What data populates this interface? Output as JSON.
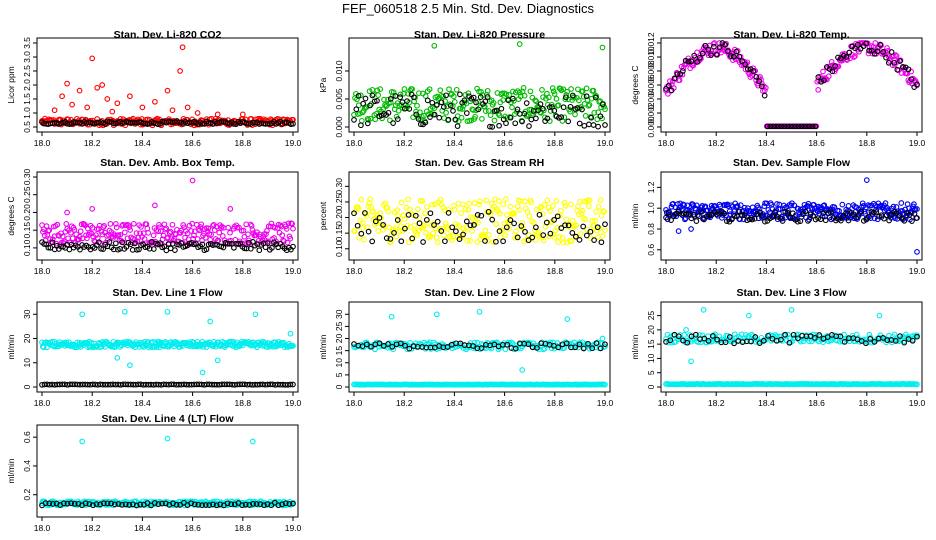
{
  "page_title": "FEF_060518  2.5 Min. Std. Dev. Diagnostics",
  "chart_data": [
    {
      "id": "co2",
      "type": "scatter",
      "title": "Stan. Dev. Li-820 CO2",
      "ylabel": "Licor ppm",
      "xlim": [
        18.0,
        19.0
      ],
      "ylim": [
        0.5,
        3.5
      ],
      "xticks": [
        "18.0",
        "18.2",
        "18.4",
        "18.6",
        "18.8",
        "19.0"
      ],
      "xtick_values": [
        18.0,
        18.2,
        18.4,
        18.6,
        18.8,
        19.0
      ],
      "yticks": [
        "0.5",
        "1.0",
        "1.5",
        "2.0",
        "2.5",
        "3.0",
        "3.5"
      ],
      "ytick_values": [
        0.5,
        1.0,
        1.5,
        2.0,
        2.5,
        3.0,
        3.5
      ],
      "series": [
        {
          "color": "#ff0000",
          "base": 0.68,
          "spread": 0.12,
          "n": 260,
          "outliers": [
            [
              18.05,
              1.1
            ],
            [
              18.08,
              1.6
            ],
            [
              18.1,
              2.05
            ],
            [
              18.12,
              1.3
            ],
            [
              18.15,
              1.8
            ],
            [
              18.18,
              1.2
            ],
            [
              18.2,
              2.95
            ],
            [
              18.22,
              1.9
            ],
            [
              18.24,
              2.0
            ],
            [
              18.26,
              1.5
            ],
            [
              18.28,
              1.05
            ],
            [
              18.3,
              1.35
            ],
            [
              18.35,
              1.6
            ],
            [
              18.4,
              1.2
            ],
            [
              18.45,
              1.4
            ],
            [
              18.5,
              1.8
            ],
            [
              18.52,
              1.1
            ],
            [
              18.55,
              2.5
            ],
            [
              18.56,
              3.35
            ],
            [
              18.58,
              1.2
            ],
            [
              18.62,
              1.0
            ],
            [
              18.7,
              0.95
            ],
            [
              18.8,
              0.95
            ]
          ]
        },
        {
          "color": "#000000",
          "base": 0.65,
          "spread": 0.05,
          "n": 120,
          "outliers": []
        }
      ]
    },
    {
      "id": "pressure",
      "type": "scatter",
      "title": "Stan. Dev. Li-820 Pressure",
      "ylabel": "kPa",
      "xlim": [
        18.0,
        19.0
      ],
      "ylim": [
        0.0,
        0.015
      ],
      "xticks": [
        "18.0",
        "18.2",
        "18.4",
        "18.6",
        "18.8",
        "19.0"
      ],
      "xtick_values": [
        18.0,
        18.2,
        18.4,
        18.6,
        18.8,
        19.0
      ],
      "yticks": [
        "0.000",
        "0.005",
        "0.010"
      ],
      "ytick_values": [
        0.0,
        0.005,
        0.01
      ],
      "series": [
        {
          "color": "#00bb00",
          "base": 0.004,
          "spread": 0.003,
          "n": 260,
          "outliers": [
            [
              18.32,
              0.0145
            ],
            [
              18.66,
              0.0148
            ],
            [
              18.99,
              0.0142
            ]
          ]
        },
        {
          "color": "#000000",
          "base": 0.003,
          "spread": 0.003,
          "n": 110,
          "outliers": []
        }
      ]
    },
    {
      "id": "temp",
      "type": "scatter",
      "title": "Stan. Dev. Li-820 Temp.",
      "ylabel": "degrees C",
      "xlim": [
        18.0,
        19.0
      ],
      "ylim": [
        0.0,
        0.012
      ],
      "xticks": [
        "18.0",
        "18.2",
        "18.4",
        "18.6",
        "18.8",
        "19.0"
      ],
      "xtick_values": [
        18.0,
        18.2,
        18.4,
        18.6,
        18.8,
        19.0
      ],
      "yticks": [
        "0.000",
        "0.002",
        "0.004",
        "0.006",
        "0.008",
        "0.010",
        "0.012"
      ],
      "ytick_values": [
        0.0,
        0.002,
        0.004,
        0.006,
        0.008,
        0.01,
        0.012
      ],
      "series": [
        {
          "color": "#ee00ee",
          "base": 0.008,
          "spread": 0.002,
          "n": 260,
          "outliers": [],
          "shape": "temp"
        },
        {
          "color": "#000000",
          "base": 0.007,
          "spread": 0.002,
          "n": 90,
          "outliers": [],
          "shape": "temp"
        }
      ]
    },
    {
      "id": "boxtemp",
      "type": "scatter",
      "title": "Stan. Dev. Amb. Box Temp.",
      "ylabel": "degrees C",
      "xlim": [
        18.0,
        19.0
      ],
      "ylim": [
        0.08,
        0.3
      ],
      "xticks": [
        "18.0",
        "18.2",
        "18.4",
        "18.6",
        "18.8",
        "19.0"
      ],
      "xtick_values": [
        18.0,
        18.2,
        18.4,
        18.6,
        18.8,
        19.0
      ],
      "yticks": [
        "0.10",
        "0.15",
        "0.20",
        "0.25",
        "0.30"
      ],
      "ytick_values": [
        0.1,
        0.15,
        0.2,
        0.25,
        0.3
      ],
      "series": [
        {
          "color": "#ee00ee",
          "base": 0.14,
          "spread": 0.03,
          "n": 280,
          "outliers": [
            [
              18.6,
              0.29
            ],
            [
              18.45,
              0.22
            ],
            [
              18.2,
              0.21
            ],
            [
              18.75,
              0.21
            ],
            [
              18.1,
              0.2
            ]
          ]
        },
        {
          "color": "#000000",
          "base": 0.105,
          "spread": 0.012,
          "n": 120,
          "outliers": []
        }
      ]
    },
    {
      "id": "rh",
      "type": "scatter",
      "title": "Stan. Dev. Gas Stream RH",
      "ylabel": "percent",
      "xlim": [
        18.0,
        19.0
      ],
      "ylim": [
        0.08,
        0.33
      ],
      "xticks": [
        "18.0",
        "18.2",
        "18.4",
        "18.6",
        "18.8",
        "19.0"
      ],
      "xtick_values": [
        18.0,
        18.2,
        18.4,
        18.6,
        18.8,
        19.0
      ],
      "yticks": [
        "0.10",
        "0.15",
        "0.20",
        "0.25",
        "0.30"
      ],
      "ytick_values": [
        0.1,
        0.15,
        0.2,
        0.25,
        0.3
      ],
      "series": [
        {
          "color": "#ffff00",
          "base": 0.19,
          "spread": 0.07,
          "n": 280,
          "outliers": []
        },
        {
          "color": "#000000",
          "base": 0.17,
          "spread": 0.05,
          "n": 70,
          "outliers": []
        }
      ]
    },
    {
      "id": "sampleflow",
      "type": "scatter",
      "title": "Stan. Dev. Sample Flow",
      "ylabel": "ml/min",
      "xlim": [
        18.0,
        19.0
      ],
      "ylim": [
        0.55,
        1.3
      ],
      "xticks": [
        "18.0",
        "18.2",
        "18.4",
        "18.6",
        "18.8",
        "19.0"
      ],
      "xtick_values": [
        18.0,
        18.2,
        18.4,
        18.6,
        18.8,
        19.0
      ],
      "yticks": [
        "0.6",
        "0.8",
        "1.0",
        "1.2"
      ],
      "ytick_values": [
        0.6,
        0.8,
        1.0,
        1.2
      ],
      "series": [
        {
          "color": "#0000ee",
          "base": 0.97,
          "spread": 0.08,
          "n": 320,
          "outliers": [
            [
              18.8,
              1.27
            ],
            [
              19.0,
              0.58
            ],
            [
              18.05,
              0.78
            ],
            [
              18.1,
              0.8
            ]
          ]
        },
        {
          "color": "#000000",
          "base": 0.92,
          "spread": 0.05,
          "n": 100,
          "outliers": []
        }
      ]
    },
    {
      "id": "line1",
      "type": "scatter",
      "title": "Stan. Dev. Line 1 Flow",
      "ylabel": "ml/min",
      "xlim": [
        18.0,
        19.0
      ],
      "ylim": [
        0,
        33
      ],
      "xticks": [
        "18.0",
        "18.2",
        "18.4",
        "18.6",
        "18.8",
        "19.0"
      ],
      "xtick_values": [
        18.0,
        18.2,
        18.4,
        18.6,
        18.8,
        19.0
      ],
      "yticks": [
        "0",
        "10",
        "20",
        "30"
      ],
      "ytick_values": [
        0,
        10,
        20,
        30
      ],
      "series": [
        {
          "color": "#00eeee",
          "base": 17.5,
          "spread": 1.2,
          "n": 300,
          "outliers": [
            [
              18.16,
              30
            ],
            [
              18.33,
              31
            ],
            [
              18.5,
              31
            ],
            [
              18.67,
              27
            ],
            [
              18.85,
              30
            ],
            [
              18.99,
              22
            ],
            [
              18.3,
              12
            ],
            [
              18.35,
              9
            ],
            [
              18.64,
              6
            ],
            [
              18.7,
              11
            ]
          ]
        },
        {
          "color": "#000000",
          "base": 1.0,
          "spread": 0.1,
          "n": 100,
          "outliers": []
        }
      ]
    },
    {
      "id": "line2",
      "type": "scatter",
      "title": "Stan. Dev. Line 2 Flow",
      "ylabel": "ml/min",
      "xlim": [
        18.0,
        19.0
      ],
      "ylim": [
        0,
        33
      ],
      "xticks": [
        "18.0",
        "18.2",
        "18.4",
        "18.6",
        "18.8",
        "19.0"
      ],
      "xtick_values": [
        18.0,
        18.2,
        18.4,
        18.6,
        18.8,
        19.0
      ],
      "yticks": [
        "0",
        "5",
        "10",
        "15",
        "20",
        "25",
        "30"
      ],
      "ytick_values": [
        0,
        5,
        10,
        15,
        20,
        25,
        30
      ],
      "series": [
        {
          "color": "#00eeee",
          "base": 17.0,
          "spread": 1.5,
          "n": 180,
          "outliers": [
            [
              18.15,
              29
            ],
            [
              18.33,
              30
            ],
            [
              18.5,
              31
            ],
            [
              18.67,
              7
            ],
            [
              18.85,
              28
            ],
            [
              18.99,
              20
            ]
          ]
        },
        {
          "color": "#00eeee",
          "base": 1.0,
          "spread": 0.1,
          "n": 200,
          "outliers": []
        },
        {
          "color": "#000000",
          "base": 17.0,
          "spread": 1.2,
          "n": 60,
          "outliers": []
        }
      ]
    },
    {
      "id": "line3",
      "type": "scatter",
      "title": "Stan. Dev. Line 3 Flow",
      "ylabel": "ml/min",
      "xlim": [
        18.0,
        19.0
      ],
      "ylim": [
        0,
        28
      ],
      "xticks": [
        "18.0",
        "18.2",
        "18.4",
        "18.6",
        "18.8",
        "19.0"
      ],
      "xtick_values": [
        18.0,
        18.2,
        18.4,
        18.6,
        18.8,
        19.0
      ],
      "yticks": [
        "0",
        "5",
        "10",
        "15",
        "20",
        "25"
      ],
      "ytick_values": [
        0,
        5,
        10,
        15,
        20,
        25
      ],
      "series": [
        {
          "color": "#00eeee",
          "base": 17.0,
          "spread": 1.5,
          "n": 180,
          "outliers": [
            [
              18.08,
              20
            ],
            [
              18.15,
              27
            ],
            [
              18.33,
              25
            ],
            [
              18.5,
              27
            ],
            [
              18.85,
              25
            ],
            [
              18.1,
              9
            ]
          ]
        },
        {
          "color": "#00eeee",
          "base": 1.0,
          "spread": 0.1,
          "n": 200,
          "outliers": []
        },
        {
          "color": "#000000",
          "base": 16.8,
          "spread": 1.5,
          "n": 60,
          "outliers": []
        }
      ]
    },
    {
      "id": "line4",
      "type": "scatter",
      "title": "Stan. Dev. Line 4 (LT) Flow",
      "ylabel": "ml/min",
      "xlim": [
        18.0,
        19.0
      ],
      "ylim": [
        0.08,
        0.65
      ],
      "xticks": [
        "18.0",
        "18.2",
        "18.4",
        "18.6",
        "18.8",
        "19.0"
      ],
      "xtick_values": [
        18.0,
        18.2,
        18.4,
        18.6,
        18.8,
        19.0
      ],
      "yticks": [
        "0.2",
        "0.4",
        "0.6"
      ],
      "ytick_values": [
        0.2,
        0.4,
        0.6
      ],
      "series": [
        {
          "color": "#00eeee",
          "base": 0.14,
          "spread": 0.015,
          "n": 300,
          "outliers": [
            [
              18.16,
              0.57
            ],
            [
              18.5,
              0.59
            ],
            [
              18.84,
              0.57
            ]
          ]
        },
        {
          "color": "#000000",
          "base": 0.135,
          "spread": 0.01,
          "n": 70,
          "outliers": []
        }
      ]
    }
  ]
}
